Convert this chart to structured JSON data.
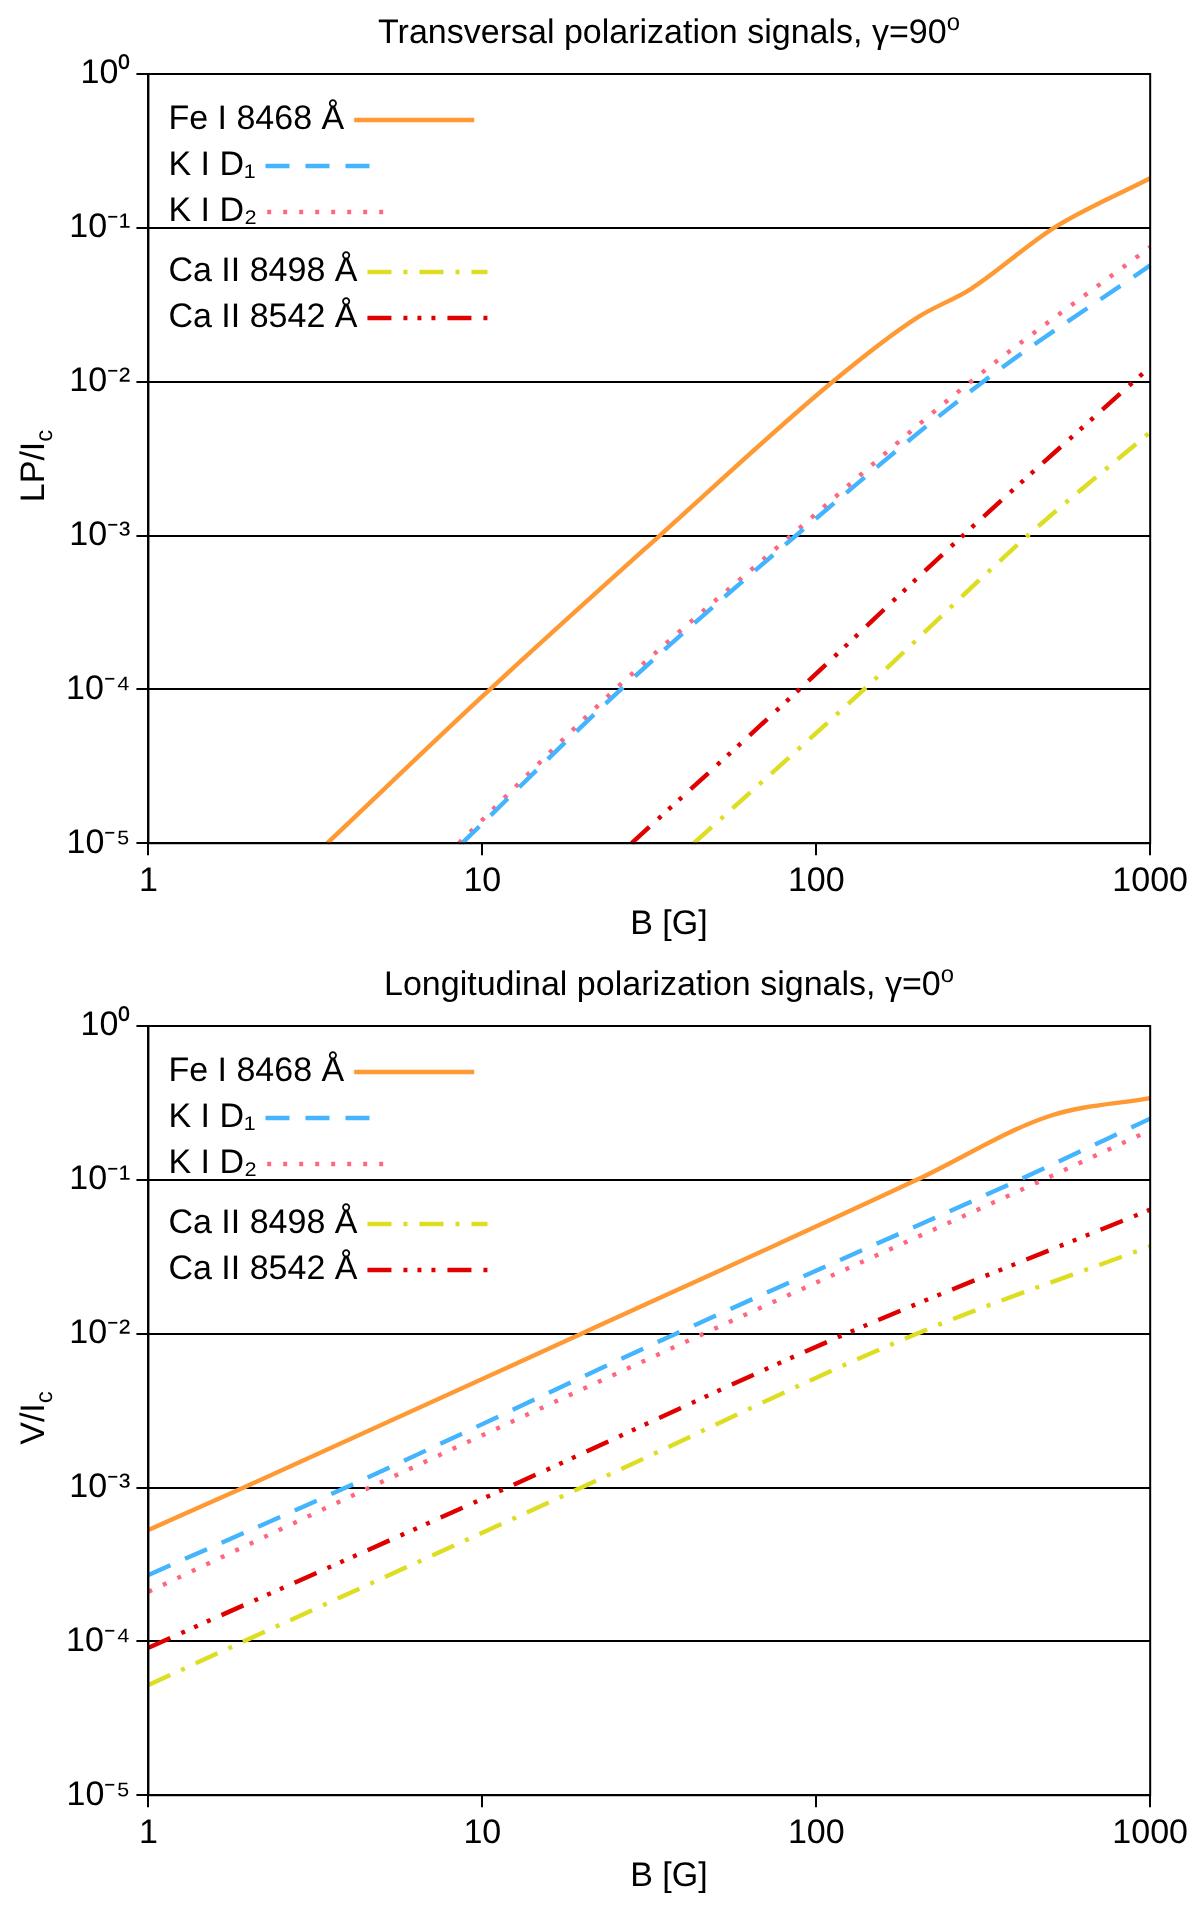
{
  "chart_data": [
    {
      "type": "line",
      "title": "Transversal polarization signals, γ=90$^{o}$",
      "xlabel": "B [G]",
      "ylabel": "LP/I$_{c}$",
      "log": "xy",
      "grid": "y",
      "legend": "top left",
      "marker": "none",
      "xlim": [
        1,
        1000
      ],
      "xticks": [
        1,
        10,
        100,
        1000
      ],
      "ylim": [
        1e-05,
        1
      ],
      "yticks": [
        {
          "value": 1e-05,
          "label": "10⁻⁵"
        },
        {
          "value": 0.0001,
          "label": "10⁻⁴"
        },
        {
          "value": 0.001,
          "label": "10⁻³"
        },
        {
          "value": 0.01,
          "label": "10⁻²"
        },
        {
          "value": 0.1,
          "label": "10⁻¹"
        },
        {
          "value": 1,
          "label": "10⁰"
        }
      ],
      "series": [
        {
          "name": "Fe I 8468 Å",
          "color": "#ff9933",
          "line_style": "solid",
          "x": [
            3.43,
            10,
            34,
            112,
            200,
            290,
            515,
            1000
          ],
          "values": [
            1e-05,
            9e-05,
            0.001,
            0.01,
            0.026,
            0.04,
            0.1,
            0.21
          ]
        },
        {
          "name": "K I D₁",
          "color": "#44b4ff",
          "line_style": "dashed",
          "x": [
            8.7,
            26,
            87,
            316,
            1000
          ],
          "values": [
            1e-05,
            0.0001,
            0.001,
            0.01,
            0.057
          ]
        },
        {
          "name": "K I D₂",
          "color": "#ff6680",
          "line_style": "dotted",
          "x": [
            8.5,
            25,
            84,
            290,
            1000
          ],
          "values": [
            1e-05,
            0.0001,
            0.001,
            0.01,
            0.075
          ]
        },
        {
          "name": "Ca II 8498 Å",
          "color": "#dddd22",
          "line_style": "dashdot",
          "x": [
            43,
            139,
            430,
            1000
          ],
          "values": [
            1e-05,
            0.0001,
            0.001,
            0.0047
          ]
        },
        {
          "name": "Ca II 8542 Å",
          "color": "#e00000",
          "line_style": "dashdotdotdot",
          "x": [
            28,
            89,
            275,
            1000
          ],
          "values": [
            1e-05,
            0.0001,
            0.001,
            0.0125
          ]
        }
      ]
    },
    {
      "type": "line",
      "title": "Longitudinal polarization signals, γ=0$^{o}$",
      "xlabel": "B [G]",
      "ylabel": "V/I$_{c}$",
      "log": "xy",
      "grid": "y",
      "legend": "top left",
      "marker": "none",
      "xlim": [
        1,
        1000
      ],
      "xticks": [
        1,
        10,
        100,
        1000
      ],
      "ylim": [
        1e-05,
        1
      ],
      "yticks": [
        {
          "value": 1e-05,
          "label": "10⁻⁵"
        },
        {
          "value": 0.0001,
          "label": "10⁻⁴"
        },
        {
          "value": 0.001,
          "label": "10⁻³"
        },
        {
          "value": 0.01,
          "label": "10⁻²"
        },
        {
          "value": 0.1,
          "label": "10⁻¹"
        },
        {
          "value": 1,
          "label": "10⁰"
        }
      ],
      "series": [
        {
          "name": "Fe I 8468 Å",
          "color": "#ff9933",
          "line_style": "solid",
          "x": [
            1,
            1.93,
            19.8,
            200,
            500,
            1000
          ],
          "values": [
            0.00053,
            0.001,
            0.01,
            0.1,
            0.26,
            0.34
          ]
        },
        {
          "name": "K I D₁",
          "color": "#44b4ff",
          "line_style": "dashed",
          "x": [
            1,
            3.9,
            38,
            405,
            1000
          ],
          "values": [
            0.00027,
            0.001,
            0.01,
            0.1,
            0.25
          ]
        },
        {
          "name": "K I D₂",
          "color": "#ff6680",
          "line_style": "dotted",
          "x": [
            1,
            4.6,
            46,
            478,
            1000
          ],
          "values": [
            0.00021,
            0.001,
            0.01,
            0.1,
            0.21
          ]
        },
        {
          "name": "Ca II 8498 Å",
          "color": "#dddd22",
          "line_style": "dashdot",
          "x": [
            1,
            1.93,
            19.8,
            200,
            1000
          ],
          "values": [
            5.2e-05,
            0.0001,
            0.001,
            0.01,
            0.037
          ]
        },
        {
          "name": "Ca II 8542 Å",
          "color": "#e00000",
          "line_style": "dashdotdotdot",
          "x": [
            1,
            11.9,
            123,
            1000
          ],
          "values": [
            9.1e-05,
            0.001,
            0.01,
            0.064
          ]
        }
      ]
    }
  ]
}
